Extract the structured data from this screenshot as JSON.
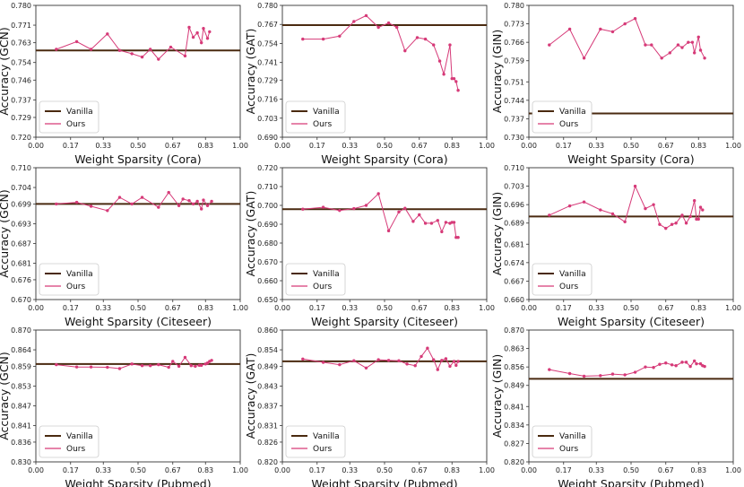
{
  "colors": {
    "vanilla": "#4a2a10",
    "ours": "#d63a78",
    "frame": "#333333"
  },
  "xticks": [
    0.0,
    0.17,
    0.33,
    0.5,
    0.67,
    0.83,
    1.0
  ],
  "legend": {
    "vanilla": "Vanilla",
    "ours": "Ours",
    "placement": "lower-left"
  },
  "chart_data": [
    {
      "type": "line",
      "xlabel": "Weight Sparsity (Cora)",
      "ylabel": "Accuracy (GCN)",
      "xlim": [
        0,
        1
      ],
      "ylim": [
        0.72,
        0.78
      ],
      "yticks": [
        0.72,
        0.729,
        0.737,
        0.746,
        0.754,
        0.763,
        0.771,
        0.78
      ],
      "vanilla": 0.7595,
      "x": [
        0.1,
        0.2,
        0.27,
        0.35,
        0.41,
        0.47,
        0.52,
        0.56,
        0.6,
        0.66,
        0.73,
        0.75,
        0.77,
        0.79,
        0.81,
        0.82,
        0.84,
        0.85
      ],
      "y": [
        0.76,
        0.7635,
        0.76,
        0.767,
        0.7595,
        0.758,
        0.7565,
        0.76,
        0.7555,
        0.761,
        0.757,
        0.77,
        0.7655,
        0.7675,
        0.763,
        0.7695,
        0.765,
        0.768
      ]
    },
    {
      "type": "line",
      "xlabel": "Weight Sparsity (Cora)",
      "ylabel": "Accuracy (GAT)",
      "xlim": [
        0,
        1
      ],
      "ylim": [
        0.69,
        0.78
      ],
      "yticks": [
        0.69,
        0.703,
        0.716,
        0.729,
        0.741,
        0.754,
        0.767,
        0.78
      ],
      "vanilla": 0.7665,
      "x": [
        0.1,
        0.2,
        0.28,
        0.35,
        0.41,
        0.47,
        0.52,
        0.56,
        0.6,
        0.66,
        0.7,
        0.74,
        0.77,
        0.79,
        0.82,
        0.83,
        0.84,
        0.85,
        0.86
      ],
      "y": [
        0.757,
        0.757,
        0.759,
        0.769,
        0.773,
        0.765,
        0.768,
        0.765,
        0.749,
        0.758,
        0.757,
        0.753,
        0.742,
        0.733,
        0.753,
        0.73,
        0.73,
        0.728,
        0.722
      ]
    },
    {
      "type": "line",
      "xlabel": "Weight Sparsity (Cora)",
      "ylabel": "Accuracy (GIN)",
      "xlim": [
        0,
        1
      ],
      "ylim": [
        0.73,
        0.78
      ],
      "yticks": [
        0.73,
        0.737,
        0.744,
        0.751,
        0.759,
        0.766,
        0.773,
        0.78
      ],
      "vanilla": 0.739,
      "x": [
        0.1,
        0.2,
        0.27,
        0.35,
        0.41,
        0.47,
        0.52,
        0.57,
        0.6,
        0.65,
        0.69,
        0.73,
        0.75,
        0.78,
        0.8,
        0.81,
        0.83,
        0.84,
        0.86
      ],
      "y": [
        0.765,
        0.771,
        0.76,
        0.771,
        0.77,
        0.773,
        0.775,
        0.765,
        0.765,
        0.76,
        0.762,
        0.765,
        0.764,
        0.766,
        0.766,
        0.762,
        0.768,
        0.763,
        0.76
      ]
    },
    {
      "type": "line",
      "xlabel": "Weight Sparsity (Citeseer)",
      "ylabel": "Accuracy (GCN)",
      "xlim": [
        0,
        1
      ],
      "ylim": [
        0.67,
        0.71
      ],
      "yticks": [
        0.67,
        0.676,
        0.681,
        0.687,
        0.693,
        0.699,
        0.704,
        0.71
      ],
      "vanilla": 0.699,
      "x": [
        0.1,
        0.2,
        0.27,
        0.35,
        0.41,
        0.47,
        0.52,
        0.6,
        0.65,
        0.7,
        0.72,
        0.75,
        0.77,
        0.79,
        0.81,
        0.82,
        0.84,
        0.86
      ],
      "y": [
        0.699,
        0.6995,
        0.6983,
        0.697,
        0.701,
        0.699,
        0.701,
        0.698,
        0.7025,
        0.6985,
        0.7005,
        0.7,
        0.699,
        0.6998,
        0.6975,
        0.7002,
        0.6985,
        0.6998
      ]
    },
    {
      "type": "line",
      "xlabel": "Weight Sparsity (Citeseer)",
      "ylabel": "Accuracy (GAT)",
      "xlim": [
        0,
        1
      ],
      "ylim": [
        0.65,
        0.72
      ],
      "yticks": [
        0.65,
        0.66,
        0.67,
        0.68,
        0.69,
        0.7,
        0.71,
        0.72
      ],
      "vanilla": 0.698,
      "x": [
        0.1,
        0.2,
        0.28,
        0.35,
        0.41,
        0.47,
        0.52,
        0.57,
        0.6,
        0.64,
        0.67,
        0.7,
        0.73,
        0.76,
        0.78,
        0.8,
        0.82,
        0.83,
        0.84,
        0.85,
        0.86
      ],
      "y": [
        0.698,
        0.699,
        0.6973,
        0.6983,
        0.7,
        0.7062,
        0.6865,
        0.6965,
        0.6985,
        0.6915,
        0.695,
        0.6905,
        0.6905,
        0.692,
        0.686,
        0.691,
        0.6905,
        0.691,
        0.691,
        0.683,
        0.683
      ]
    },
    {
      "type": "line",
      "xlabel": "Weight Sparsity (Citeseer)",
      "ylabel": "Accuracy (GIN)",
      "xlim": [
        0,
        1
      ],
      "ylim": [
        0.66,
        0.71
      ],
      "yticks": [
        0.66,
        0.667,
        0.674,
        0.681,
        0.689,
        0.696,
        0.703,
        0.71
      ],
      "vanilla": 0.6915,
      "x": [
        0.1,
        0.2,
        0.27,
        0.35,
        0.41,
        0.47,
        0.52,
        0.57,
        0.61,
        0.64,
        0.67,
        0.7,
        0.72,
        0.75,
        0.77,
        0.79,
        0.81,
        0.82,
        0.83,
        0.84,
        0.85
      ],
      "y": [
        0.692,
        0.6955,
        0.697,
        0.694,
        0.6925,
        0.6895,
        0.703,
        0.6945,
        0.696,
        0.6885,
        0.687,
        0.6885,
        0.689,
        0.692,
        0.689,
        0.6915,
        0.6975,
        0.6905,
        0.6905,
        0.695,
        0.694
      ]
    },
    {
      "type": "line",
      "xlabel": "Weight Sparsity (Pubmed)",
      "ylabel": "Accuracy (GCN)",
      "xlim": [
        0,
        1
      ],
      "ylim": [
        0.83,
        0.87
      ],
      "yticks": [
        0.83,
        0.836,
        0.841,
        0.847,
        0.853,
        0.859,
        0.864,
        0.87
      ],
      "vanilla": 0.8597,
      "x": [
        0.1,
        0.2,
        0.27,
        0.35,
        0.41,
        0.47,
        0.52,
        0.56,
        0.6,
        0.65,
        0.67,
        0.7,
        0.73,
        0.76,
        0.78,
        0.8,
        0.81,
        0.83,
        0.84,
        0.85,
        0.86
      ],
      "y": [
        0.8595,
        0.8588,
        0.8588,
        0.8587,
        0.8583,
        0.8597,
        0.8592,
        0.8592,
        0.8595,
        0.8587,
        0.8605,
        0.859,
        0.8617,
        0.8592,
        0.859,
        0.8593,
        0.8593,
        0.8597,
        0.86,
        0.8605,
        0.8608
      ]
    },
    {
      "type": "line",
      "xlabel": "Weight Sparsity (Pubmed)",
      "ylabel": "Accuracy (GAT)",
      "xlim": [
        0,
        1
      ],
      "ylim": [
        0.82,
        0.86
      ],
      "yticks": [
        0.82,
        0.826,
        0.831,
        0.837,
        0.843,
        0.849,
        0.854,
        0.86
      ],
      "vanilla": 0.8505,
      "x": [
        0.1,
        0.2,
        0.28,
        0.35,
        0.41,
        0.47,
        0.52,
        0.57,
        0.61,
        0.65,
        0.68,
        0.71,
        0.74,
        0.76,
        0.78,
        0.8,
        0.82,
        0.84,
        0.85,
        0.86
      ],
      "y": [
        0.8512,
        0.8502,
        0.8495,
        0.8507,
        0.8485,
        0.851,
        0.8508,
        0.8507,
        0.8497,
        0.8492,
        0.852,
        0.8545,
        0.851,
        0.848,
        0.8508,
        0.8513,
        0.849,
        0.8505,
        0.8493,
        0.8505
      ]
    },
    {
      "type": "line",
      "xlabel": "Weight Sparsity (Pubmed)",
      "ylabel": "Accuracy (GIN)",
      "xlim": [
        0,
        1
      ],
      "ylim": [
        0.82,
        0.87
      ],
      "yticks": [
        0.82,
        0.827,
        0.834,
        0.841,
        0.849,
        0.856,
        0.863,
        0.87
      ],
      "vanilla": 0.8515,
      "x": [
        0.1,
        0.2,
        0.27,
        0.35,
        0.41,
        0.47,
        0.52,
        0.57,
        0.61,
        0.64,
        0.67,
        0.7,
        0.72,
        0.75,
        0.77,
        0.79,
        0.81,
        0.82,
        0.84,
        0.85,
        0.86
      ],
      "y": [
        0.855,
        0.8535,
        0.8525,
        0.8527,
        0.8533,
        0.853,
        0.854,
        0.856,
        0.8558,
        0.857,
        0.8575,
        0.8568,
        0.8565,
        0.8578,
        0.8578,
        0.8562,
        0.8583,
        0.8572,
        0.8572,
        0.8565,
        0.8562
      ]
    }
  ]
}
